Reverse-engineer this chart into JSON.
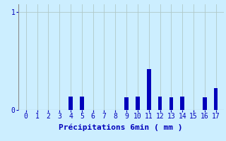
{
  "title": "",
  "xlabel": "Précipitations 6min ( mm )",
  "ylabel": "",
  "background_color": "#cceeff",
  "bar_color": "#0000bb",
  "xlim": [
    -0.7,
    17.7
  ],
  "ylim": [
    0,
    1.08
  ],
  "xtick_labels": [
    "0",
    "1",
    "2",
    "3",
    "4",
    "5",
    "6",
    "7",
    "8",
    "9",
    "10",
    "11",
    "12",
    "13",
    "14",
    "15",
    "16",
    "17"
  ],
  "ytick_labels": [
    "0",
    "1"
  ],
  "ytick_positions": [
    0,
    1
  ],
  "values": [
    0,
    0,
    0,
    0,
    0.14,
    0.14,
    0,
    0,
    0,
    0.13,
    0.14,
    0.42,
    0.14,
    0.13,
    0.14,
    0,
    0.13,
    0.22
  ],
  "grid_color": "#b0c8c8",
  "bar_width": 0.35,
  "xlabel_fontsize": 8,
  "tick_fontsize": 7
}
